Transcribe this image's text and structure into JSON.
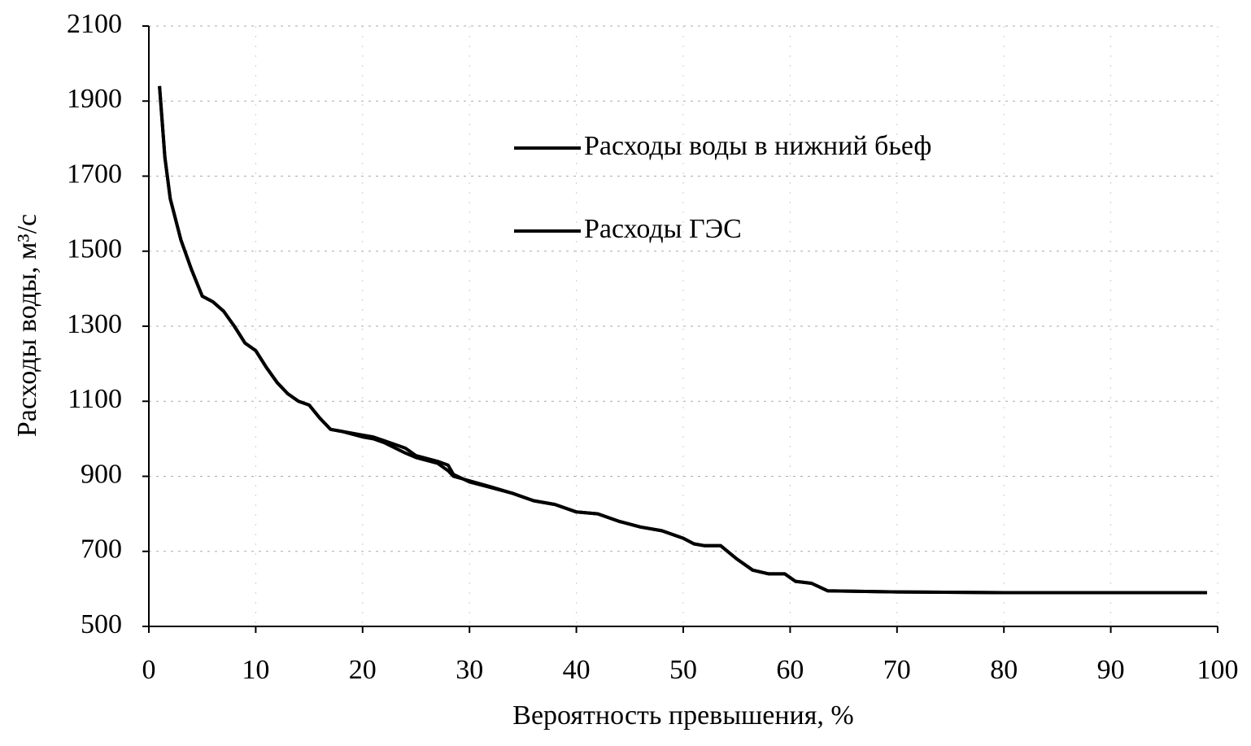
{
  "chart_data": {
    "type": "line",
    "xlabel": "Вероятность превышения, %",
    "ylabel": "Расходы воды, м³/с",
    "x": [
      1,
      1.5,
      2,
      3,
      4,
      5,
      6,
      7,
      8,
      9,
      10,
      11,
      12,
      13,
      14,
      15,
      16,
      17,
      18,
      20,
      21,
      22,
      24,
      25,
      27,
      28,
      28.5,
      30,
      32,
      34,
      36,
      38,
      40,
      42,
      44,
      46,
      48,
      50,
      51,
      52,
      53.5,
      55,
      56.5,
      58,
      59.5,
      60.5,
      62,
      63.5,
      70,
      80,
      90,
      99
    ],
    "series": [
      {
        "name": "Расходы воды в нижний бьеф",
        "color": "#000000",
        "values": [
          1940,
          1750,
          1640,
          1530,
          1450,
          1380,
          1365,
          1340,
          1300,
          1255,
          1235,
          1190,
          1150,
          1120,
          1100,
          1090,
          1055,
          1025,
          1020,
          1010,
          1005,
          995,
          975,
          955,
          940,
          930,
          905,
          885,
          870,
          855,
          835,
          825,
          805,
          800,
          780,
          765,
          755,
          735,
          720,
          715,
          715,
          680,
          650,
          640,
          640,
          620,
          615,
          595,
          592,
          590,
          590,
          590
        ]
      },
      {
        "name": "Расходы ГЭС",
        "color": "#000000",
        "values": [
          1940,
          1750,
          1640,
          1530,
          1450,
          1380,
          1365,
          1340,
          1300,
          1255,
          1235,
          1190,
          1150,
          1120,
          1100,
          1090,
          1055,
          1025,
          1020,
          1005,
          1000,
          990,
          962,
          950,
          935,
          915,
          900,
          888,
          872,
          855,
          835,
          825,
          805,
          800,
          780,
          765,
          755,
          735,
          720,
          715,
          715,
          680,
          650,
          640,
          640,
          620,
          615,
          595,
          592,
          590,
          590,
          590
        ]
      }
    ],
    "xlim": [
      0,
      100
    ],
    "xticks": [
      0,
      10,
      20,
      30,
      40,
      50,
      60,
      70,
      80,
      90,
      100
    ],
    "ylim": [
      500,
      2100
    ],
    "yticks": [
      500,
      700,
      900,
      1100,
      1300,
      1500,
      1700,
      1900,
      2100
    ],
    "grid": true
  }
}
